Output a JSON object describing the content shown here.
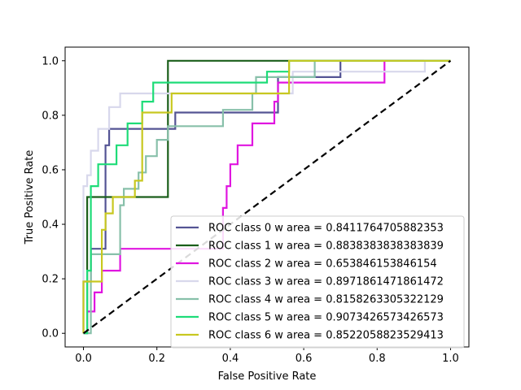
{
  "chart_data": {
    "type": "line",
    "title": "",
    "xlabel": "False Positive Rate",
    "ylabel": "True Positive Rate",
    "xlim": [
      -0.05,
      1.05
    ],
    "ylim": [
      -0.05,
      1.05
    ],
    "xticks": [
      0.0,
      0.2,
      0.4,
      0.6,
      0.8,
      1.0
    ],
    "yticks": [
      0.0,
      0.2,
      0.4,
      0.6,
      0.8,
      1.0
    ],
    "xtick_labels": [
      "0.0",
      "0.2",
      "0.4",
      "0.6",
      "0.8",
      "1.0"
    ],
    "ytick_labels": [
      "0.0",
      "0.2",
      "0.4",
      "0.6",
      "0.8",
      "1.0"
    ],
    "grid": false,
    "legend_position": "lower-right",
    "series": [
      {
        "name": "ROC class 0 w area = 0.8411764705882353",
        "color": "#545494",
        "x": [
          0,
          0,
          0.02,
          0.02,
          0.06,
          0.06,
          0.07,
          0.07,
          0.25,
          0.25,
          0.53,
          0.53,
          0.7,
          0.7,
          1.0
        ],
        "y": [
          0,
          0.19,
          0.19,
          0.31,
          0.31,
          0.69,
          0.69,
          0.75,
          0.75,
          0.81,
          0.81,
          0.94,
          0.94,
          1.0,
          1.0
        ]
      },
      {
        "name": "ROC class 1 w area = 0.8838383838383839",
        "color": "#1a5e1a",
        "x": [
          0,
          0,
          0.01,
          0.01,
          0.23,
          0.23,
          0.5,
          0.5,
          1.0
        ],
        "y": [
          0,
          0.0,
          0.0,
          0.5,
          0.5,
          1.0,
          1.0,
          1.0,
          1.0
        ]
      },
      {
        "name": "ROC class 2 w area = 0.653846153846154",
        "color": "#e016e0",
        "x": [
          0,
          0,
          0.01,
          0.01,
          0.03,
          0.03,
          0.05,
          0.05,
          0.1,
          0.1,
          0.38,
          0.38,
          0.39,
          0.39,
          0.4,
          0.4,
          0.42,
          0.42,
          0.46,
          0.46,
          0.52,
          0.52,
          0.53,
          0.53,
          0.54,
          0.54,
          0.62,
          0.62,
          0.82,
          0.82,
          1.0
        ],
        "y": [
          0,
          0.0,
          0.0,
          0.08,
          0.08,
          0.15,
          0.15,
          0.23,
          0.23,
          0.31,
          0.31,
          0.46,
          0.46,
          0.54,
          0.54,
          0.62,
          0.62,
          0.69,
          0.69,
          0.77,
          0.77,
          0.85,
          0.85,
          0.92,
          0.92,
          0.92,
          0.92,
          0.92,
          0.92,
          1.0,
          1.0
        ]
      },
      {
        "name": "ROC class 3 w area = 0.8971861471861472",
        "color": "#d8d8ec",
        "x": [
          0,
          0,
          0.01,
          0.01,
          0.02,
          0.02,
          0.04,
          0.04,
          0.07,
          0.07,
          0.1,
          0.1,
          0.57,
          0.57,
          0.93,
          0.93,
          1.0
        ],
        "y": [
          0,
          0.54,
          0.54,
          0.58,
          0.58,
          0.67,
          0.67,
          0.75,
          0.75,
          0.83,
          0.83,
          0.88,
          0.88,
          0.96,
          0.96,
          1.0,
          1.0
        ]
      },
      {
        "name": "ROC class 4 w area = 0.8158263305322129",
        "color": "#88c0aa",
        "x": [
          0,
          0,
          0.02,
          0.02,
          0.1,
          0.1,
          0.11,
          0.11,
          0.15,
          0.15,
          0.17,
          0.17,
          0.2,
          0.2,
          0.23,
          0.23,
          0.38,
          0.38,
          0.46,
          0.46,
          0.47,
          0.47,
          0.63,
          0.63,
          1.0
        ],
        "y": [
          0,
          0.0,
          0.0,
          0.29,
          0.29,
          0.47,
          0.47,
          0.53,
          0.53,
          0.59,
          0.59,
          0.65,
          0.65,
          0.71,
          0.71,
          0.76,
          0.76,
          0.82,
          0.82,
          0.88,
          0.88,
          0.94,
          0.94,
          1.0,
          1.0
        ]
      },
      {
        "name": "ROC class 5 w area = 0.9073426573426573",
        "color": "#1edc78",
        "x": [
          0,
          0,
          0.01,
          0.01,
          0.02,
          0.02,
          0.04,
          0.04,
          0.09,
          0.09,
          0.12,
          0.12,
          0.16,
          0.16,
          0.19,
          0.19,
          0.5,
          0.5,
          0.56,
          0.56,
          1.0
        ],
        "y": [
          0,
          0.0,
          0.0,
          0.23,
          0.23,
          0.54,
          0.54,
          0.62,
          0.62,
          0.69,
          0.69,
          0.77,
          0.77,
          0.85,
          0.85,
          0.92,
          0.92,
          0.96,
          0.96,
          1.0,
          1.0
        ]
      },
      {
        "name": "ROC class 6 w area = 0.8522058823529413",
        "color": "#c8c820",
        "x": [
          0,
          0,
          0.05,
          0.05,
          0.06,
          0.06,
          0.08,
          0.08,
          0.14,
          0.14,
          0.16,
          0.16,
          0.24,
          0.24,
          0.56,
          0.56,
          1.0
        ],
        "y": [
          0,
          0.19,
          0.19,
          0.38,
          0.38,
          0.44,
          0.44,
          0.5,
          0.5,
          0.56,
          0.56,
          0.81,
          0.81,
          0.88,
          0.88,
          1.0,
          1.0
        ]
      }
    ],
    "reference_line": {
      "x": [
        0,
        1
      ],
      "y": [
        0,
        1
      ],
      "color": "#000000",
      "style": "dashed"
    }
  }
}
